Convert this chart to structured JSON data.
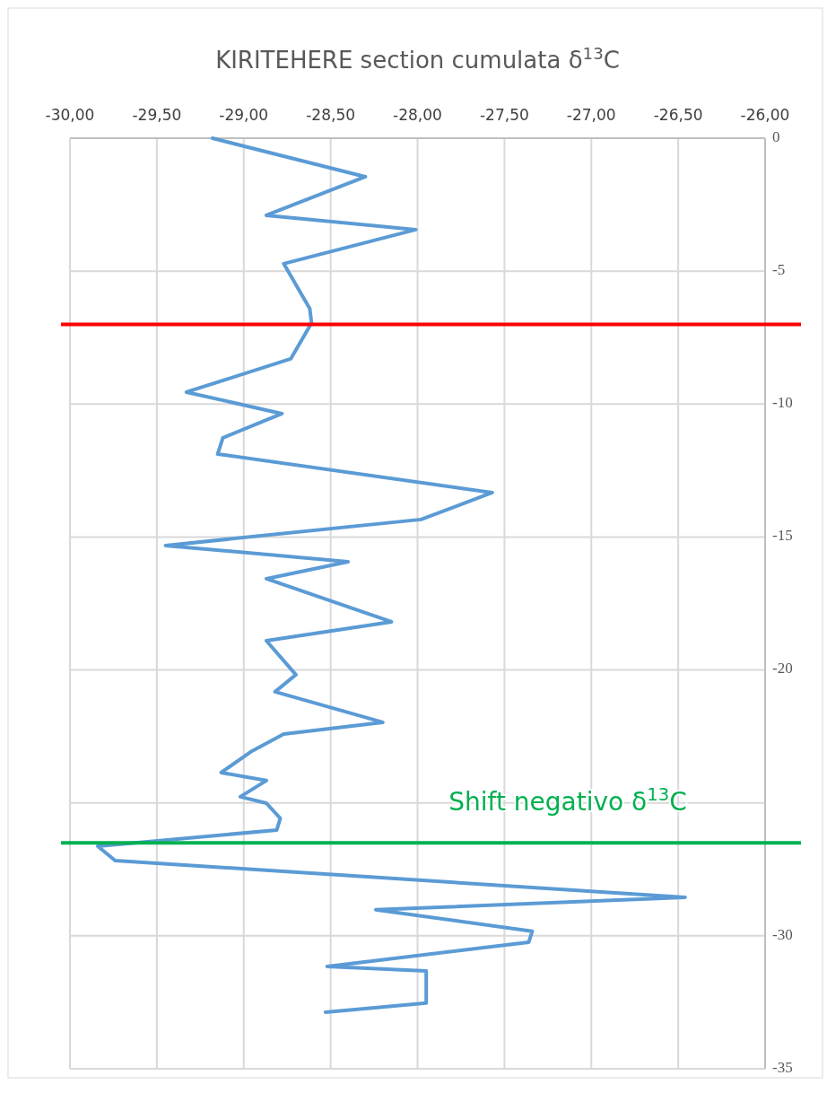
{
  "chart_data": {
    "type": "line",
    "title": "KIRITEHERE section cumulata δ$^{13}$C",
    "xlim": [
      -30,
      -26
    ],
    "xticks": [
      {
        "value": -30,
        "label": "-30,00"
      },
      {
        "value": -29.5,
        "label": "-29,50"
      },
      {
        "value": -29,
        "label": "-29,00"
      },
      {
        "value": -28.5,
        "label": "-28,50"
      },
      {
        "value": -28,
        "label": "-28,00"
      },
      {
        "value": -27.5,
        "label": "-27,50"
      },
      {
        "value": -27,
        "label": "-27,00"
      },
      {
        "value": -26.5,
        "label": "-26,50"
      },
      {
        "value": -26,
        "label": "-26,00"
      }
    ],
    "ylim": [
      -35,
      0
    ],
    "yticks": [
      0,
      -5,
      -10,
      -15,
      -20,
      {
        "value": -25,
        "label": null
      },
      -30,
      -35
    ],
    "grid": true,
    "marker": "none",
    "line_style": "solid",
    "series": [
      {
        "color": "#5b9bd5",
        "x": [
          -29.18,
          -28.3,
          -28.87,
          -28.01,
          -28.77,
          -28.62,
          -28.61,
          -28.73,
          -29.33,
          -28.78,
          -29.12,
          -29.15,
          -27.57,
          -27.98,
          -29.45,
          -28.4,
          -28.87,
          -28.15,
          -28.87,
          -28.7,
          -28.82,
          -28.2,
          -28.77,
          -28.96,
          -29.13,
          -28.87,
          -29.02,
          -28.87,
          -28.79,
          -28.81,
          -29.84,
          -29.74,
          -26.46,
          -28.24,
          -27.34,
          -27.36,
          -28.52,
          -27.95,
          -27.95,
          -28.53
        ],
        "values": [
          0,
          -1.45,
          -2.9,
          -3.44,
          -4.72,
          -6.41,
          -6.95,
          -8.3,
          -9.55,
          -10.36,
          -11.27,
          -11.88,
          -13.33,
          -14.34,
          -15.32,
          -15.93,
          -16.57,
          -18.19,
          -18.9,
          -20.18,
          -20.82,
          -21.97,
          -22.41,
          -23.08,
          -23.86,
          -24.16,
          -24.77,
          -25.01,
          -25.58,
          -26.02,
          -26.63,
          -27.17,
          -28.55,
          -29.02,
          -29.83,
          -30.24,
          -31.15,
          -31.32,
          -32.53,
          -32.87
        ]
      }
    ],
    "ref_lines": [
      {
        "axis": "y",
        "value": -7,
        "color": "#ff0000"
      },
      {
        "axis": "y",
        "value": -26.5,
        "color": "#00b050",
        "label": "Shift negativo δ$^{13}$C"
      }
    ]
  }
}
